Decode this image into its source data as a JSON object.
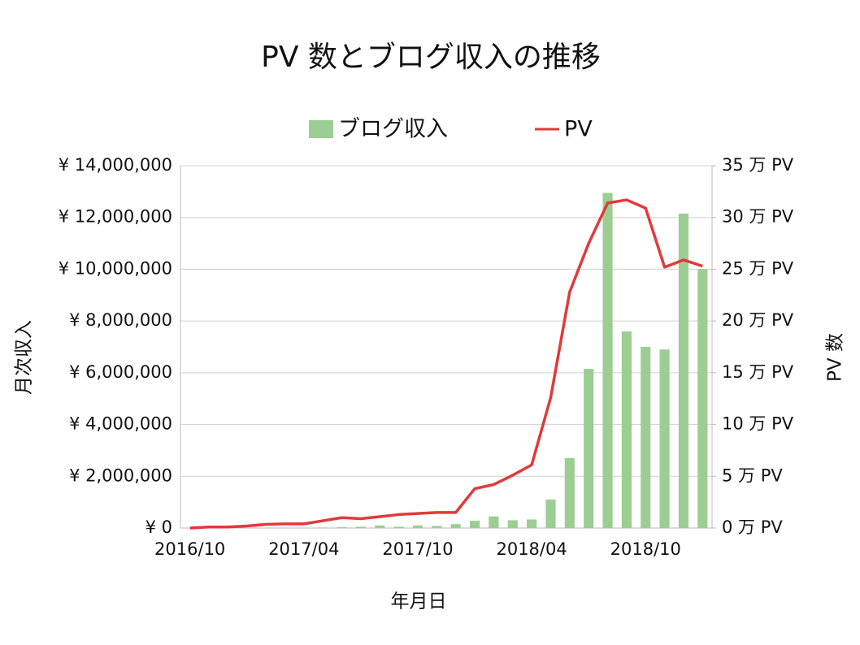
{
  "chart_data": {
    "type": "bar_line",
    "title": "PV 数とブログ収入の推移",
    "xlabel": "年月日",
    "ylabel": "月次収入",
    "y2label": "PV 数",
    "categories": [
      "2016/10",
      null,
      null,
      null,
      null,
      null,
      "2017/04",
      null,
      null,
      null,
      null,
      null,
      "2017/10",
      null,
      null,
      null,
      null,
      null,
      "2018/04",
      null,
      null,
      null,
      null,
      null,
      "2018/10",
      null,
      null,
      null
    ],
    "series": [
      {
        "name": "ブログ収入",
        "type": "bar",
        "color": "#9ccd92",
        "values": [
          0,
          0,
          0,
          0,
          0,
          10000,
          10000,
          20000,
          30000,
          50000,
          100000,
          50000,
          100000,
          80000,
          150000,
          280000,
          450000,
          300000,
          330000,
          1100000,
          2700000,
          6150000,
          12950000,
          7600000,
          7000000,
          6900000,
          12150000,
          10000000
        ]
      },
      {
        "name": "PV",
        "type": "line",
        "axis": "y2",
        "color": "#e03a3a",
        "values": [
          0,
          0.1,
          0.1,
          0.2,
          0.35,
          0.4,
          0.4,
          0.7,
          1.0,
          0.9,
          1.1,
          1.3,
          1.4,
          1.5,
          1.5,
          3.8,
          4.2,
          5.1,
          6.1,
          12.6,
          22.8,
          27.5,
          31.4,
          31.7,
          30.9,
          25.2,
          25.9,
          25.3
        ]
      }
    ],
    "ylim": [
      0,
      14000000
    ],
    "yticks": [
      {
        "value": 0,
        "label": "¥ 0"
      },
      {
        "value": 2000000,
        "label": "¥ 2,000,000"
      },
      {
        "value": 4000000,
        "label": "¥ 4,000,000"
      },
      {
        "value": 6000000,
        "label": "¥ 6,000,000"
      },
      {
        "value": 8000000,
        "label": "¥ 8,000,000"
      },
      {
        "value": 10000000,
        "label": "¥ 10,000,000"
      },
      {
        "value": 12000000,
        "label": "¥ 12,000,000"
      },
      {
        "value": 14000000,
        "label": "¥ 14,000,000"
      }
    ],
    "y2lim": [
      0,
      35
    ],
    "y2ticks": [
      {
        "value": 0,
        "label": "0 万 PV"
      },
      {
        "value": 5,
        "label": "5 万 PV"
      },
      {
        "value": 10,
        "label": "10 万 PV"
      },
      {
        "value": 15,
        "label": "15 万 PV"
      },
      {
        "value": 20,
        "label": "20 万 PV"
      },
      {
        "value": 25,
        "label": "25 万 PV"
      },
      {
        "value": 30,
        "label": "30 万 PV"
      },
      {
        "value": 35,
        "label": "35 万 PV"
      }
    ],
    "grid": true,
    "legend": "top"
  }
}
